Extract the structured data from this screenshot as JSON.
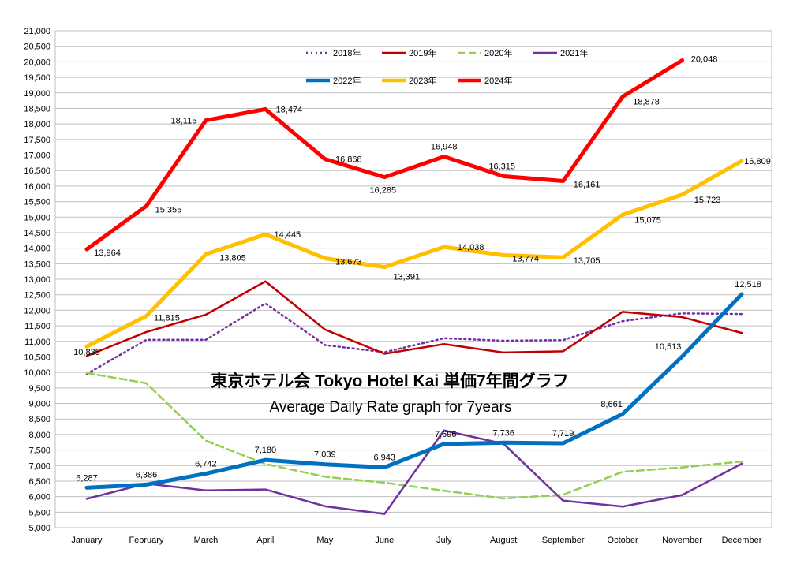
{
  "chart_data": {
    "type": "line",
    "title": "東京ホテル会  Tokyo Hotel Kai  単価7年間グラフ",
    "subtitle": "Average Daily Rate graph for 7years",
    "xlabel": "",
    "ylabel": "",
    "categories": [
      "January",
      "February",
      "March",
      "April",
      "May",
      "June",
      "July",
      "August",
      "September",
      "October",
      "November",
      "December"
    ],
    "ylim": [
      5000,
      21000
    ],
    "ytick_step": 500,
    "grid": true,
    "legend": "top-center",
    "series": [
      {
        "name": "2018年",
        "color": "#7030A0",
        "style": "dotted",
        "width": 2.5,
        "values": [
          9950,
          11050,
          11050,
          12220,
          10880,
          10650,
          11100,
          11020,
          11040,
          11650,
          11900,
          11880
        ],
        "labels": []
      },
      {
        "name": "2019年",
        "color": "#C00000",
        "style": "solid",
        "width": 2.5,
        "values": [
          10530,
          11300,
          11860,
          12930,
          11380,
          10600,
          10910,
          10640,
          10680,
          11950,
          11780,
          11270
        ],
        "labels": []
      },
      {
        "name": "2020年",
        "color": "#92D050",
        "style": "dashed",
        "width": 2.5,
        "values": [
          9980,
          9650,
          7800,
          7050,
          6640,
          6450,
          6190,
          5940,
          6060,
          6800,
          6940,
          7130
        ],
        "labels": []
      },
      {
        "name": "2021年",
        "color": "#7030A0",
        "style": "solid",
        "width": 2.5,
        "values": [
          5930,
          6420,
          6200,
          6230,
          5690,
          5440,
          8130,
          7700,
          5870,
          5680,
          6050,
          7060
        ],
        "labels": []
      },
      {
        "name": "2022年",
        "color": "#0070C0",
        "style": "solid",
        "width": 5,
        "values": [
          6287,
          6386,
          6742,
          7180,
          7039,
          6943,
          7696,
          7736,
          7719,
          8661,
          10513,
          12518
        ],
        "labels": [
          "6,287",
          "6,386",
          "6,742",
          "7,180",
          "7,039",
          "6,943",
          "7,696",
          "7,736",
          "7,719",
          "8,661",
          "10,513",
          "12,518"
        ]
      },
      {
        "name": "2023年",
        "color": "#FFC000",
        "style": "solid",
        "width": 5,
        "values": [
          10835,
          11815,
          13805,
          14445,
          13673,
          13391,
          14038,
          13774,
          13705,
          15075,
          15723,
          16809
        ],
        "labels": [
          "10,835",
          "11,815",
          "13,805",
          "14,445",
          "13,673",
          "13,391",
          "14,038",
          "13,774",
          "13,705",
          "15,075",
          "15,723",
          "16,809"
        ]
      },
      {
        "name": "2024年",
        "color": "#FF0000",
        "style": "solid",
        "width": 5,
        "values": [
          13964,
          15355,
          18115,
          18474,
          16868,
          16285,
          16948,
          16315,
          16161,
          18878,
          20048,
          null
        ],
        "labels": [
          "13,964",
          "15,355",
          "18,115",
          "18,474",
          "16,868",
          "16,285",
          "16,948",
          "16,315",
          "16,161",
          "18,878",
          "20,048",
          ""
        ]
      }
    ]
  }
}
